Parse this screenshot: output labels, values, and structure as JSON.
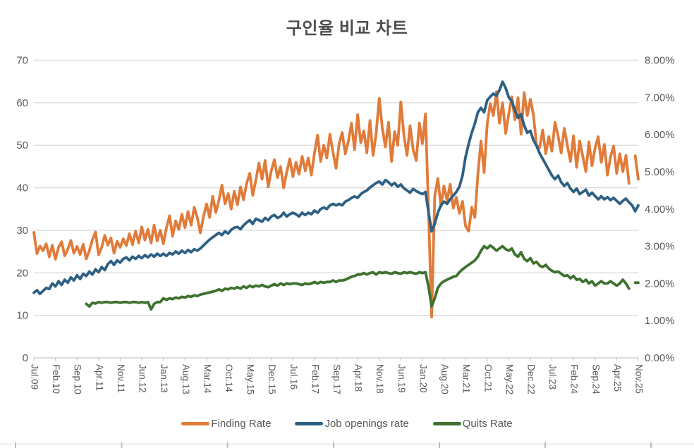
{
  "chart_data": {
    "type": "line",
    "title": "구인율 비교 차트",
    "x_unit": "month",
    "x_start": "Jul.09",
    "x_end": "Nov.25",
    "x_tick_labels": [
      "Jul.09",
      "Feb.10",
      "Sep.10",
      "Apr.11",
      "Nov.11",
      "Jun.12",
      "Jan.13",
      "Aug.13",
      "Mar.14",
      "Oct.14",
      "May.15",
      "Dec.15",
      "Jul.16",
      "Feb.17",
      "Sep.17",
      "Apr.18",
      "Nov.18",
      "Jun.19",
      "Jan.20",
      "Aug.20",
      "Mar.21",
      "Oct.21",
      "May.22",
      "Dec.22",
      "Jul.23",
      "Feb.24",
      "Sep.24",
      "Apr.25",
      "Nov.25"
    ],
    "x_tick_interval_months": 7,
    "left_axis": {
      "min": 0,
      "max": 70,
      "step": 10,
      "tick_labels": [
        "0",
        "10",
        "20",
        "30",
        "40",
        "50",
        "60",
        "70"
      ]
    },
    "right_axis": {
      "min": 0,
      "max": 8,
      "step": 1,
      "tick_labels": [
        "0.00%",
        "1.00%",
        "2.00%",
        "3.00%",
        "4.00%",
        "5.00%",
        "6.00%",
        "7.00%",
        "8.00%"
      ]
    },
    "grid": true,
    "legend_position": "bottom",
    "series": [
      {
        "name": "Finding Rate",
        "axis": "left",
        "color": "#E07B39",
        "values": [
          29.5,
          24.5,
          26.3,
          25.2,
          26.8,
          23.8,
          26.5,
          23.2,
          26.0,
          27.3,
          24.0,
          25.5,
          27.6,
          24.6,
          26.2,
          24.3,
          26.7,
          23.3,
          25.2,
          27.8,
          29.6,
          24.2,
          26.0,
          28.8,
          26.5,
          28.2,
          24.6,
          27.4,
          26.0,
          28.0,
          26.4,
          29.2,
          26.6,
          29.8,
          27.0,
          30.8,
          27.7,
          30.2,
          27.0,
          31.2,
          27.5,
          30.0,
          26.8,
          30.6,
          33.4,
          28.6,
          32.2,
          30.2,
          33.8,
          30.6,
          34.4,
          31.2,
          35.4,
          33.0,
          29.4,
          33.2,
          36.2,
          33.0,
          38.0,
          34.2,
          37.0,
          40.6,
          36.2,
          38.6,
          35.0,
          39.2,
          36.0,
          40.2,
          37.2,
          41.0,
          43.4,
          38.2,
          41.8,
          45.8,
          42.0,
          46.4,
          40.2,
          44.0,
          46.6,
          42.4,
          45.0,
          40.0,
          43.6,
          46.8,
          42.6,
          46.0,
          43.2,
          47.4,
          44.0,
          47.0,
          43.0,
          48.2,
          52.4,
          46.2,
          50.0,
          47.0,
          52.6,
          48.4,
          44.6,
          50.4,
          53.0,
          48.0,
          51.0,
          55.2,
          49.0,
          57.2,
          50.6,
          53.4,
          48.2,
          55.8,
          47.6,
          52.8,
          61.0,
          54.0,
          49.6,
          55.4,
          46.2,
          53.2,
          50.0,
          60.2,
          52.4,
          47.6,
          54.6,
          49.0,
          46.4,
          55.2,
          50.4,
          57.4,
          34.0,
          9.6,
          38.0,
          42.2,
          35.6,
          40.4,
          37.0,
          40.8,
          35.2,
          37.8,
          34.0,
          36.8,
          31.0,
          29.8,
          35.4,
          33.0,
          43.2,
          51.0,
          43.6,
          55.0,
          59.8,
          57.0,
          62.6,
          55.2,
          60.0,
          52.8,
          57.4,
          61.4,
          56.0,
          61.2,
          52.6,
          62.4,
          57.0,
          60.8,
          57.2,
          50.0,
          49.4,
          53.6,
          48.0,
          52.0,
          48.6,
          55.4,
          52.2,
          48.2,
          54.0,
          50.0,
          46.2,
          52.2,
          44.8,
          51.0,
          47.4,
          43.8,
          50.8,
          45.2,
          49.4,
          52.0,
          46.0,
          50.2,
          43.0,
          47.2,
          49.8,
          43.4,
          48.0,
          43.8,
          47.6,
          41.0,
          null,
          47.5,
          42.0
        ]
      },
      {
        "name": "Job openings rate",
        "axis": "right",
        "color": "#2E6083",
        "values": [
          1.75,
          1.82,
          1.72,
          1.8,
          1.88,
          1.85,
          2.0,
          1.92,
          2.06,
          1.96,
          2.1,
          2.02,
          2.16,
          2.08,
          2.22,
          2.12,
          2.26,
          2.2,
          2.32,
          2.24,
          2.38,
          2.3,
          2.44,
          2.36,
          2.52,
          2.6,
          2.5,
          2.62,
          2.56,
          2.66,
          2.7,
          2.62,
          2.72,
          2.66,
          2.74,
          2.68,
          2.76,
          2.7,
          2.78,
          2.72,
          2.8,
          2.74,
          2.8,
          2.74,
          2.82,
          2.78,
          2.86,
          2.8,
          2.88,
          2.82,
          2.9,
          2.84,
          2.92,
          2.88,
          2.94,
          3.02,
          3.1,
          3.18,
          3.24,
          3.3,
          3.36,
          3.3,
          3.4,
          3.34,
          3.44,
          3.5,
          3.52,
          3.46,
          3.56,
          3.64,
          3.7,
          3.6,
          3.74,
          3.7,
          3.66,
          3.76,
          3.7,
          3.8,
          3.84,
          3.76,
          3.8,
          3.9,
          3.8,
          3.86,
          3.9,
          3.86,
          3.8,
          3.9,
          3.84,
          3.9,
          3.86,
          3.96,
          3.9,
          4.0,
          4.04,
          4.0,
          4.1,
          4.14,
          4.1,
          4.14,
          4.1,
          4.2,
          4.24,
          4.3,
          4.34,
          4.3,
          4.4,
          4.46,
          4.5,
          4.58,
          4.64,
          4.7,
          4.74,
          4.66,
          4.78,
          4.72,
          4.64,
          4.7,
          4.6,
          4.66,
          4.56,
          4.5,
          4.44,
          4.54,
          4.48,
          4.44,
          4.4,
          4.46,
          3.9,
          3.4,
          3.6,
          3.9,
          4.1,
          4.2,
          4.14,
          4.26,
          4.36,
          4.46,
          4.6,
          4.9,
          5.4,
          5.75,
          6.05,
          6.3,
          6.6,
          6.72,
          6.6,
          6.92,
          7.02,
          7.1,
          7.05,
          7.2,
          7.42,
          7.25,
          7.0,
          6.9,
          6.65,
          6.45,
          6.55,
          6.25,
          6.05,
          6.1,
          5.85,
          5.7,
          5.5,
          5.35,
          5.2,
          5.05,
          4.9,
          4.8,
          4.9,
          4.72,
          4.62,
          4.7,
          4.55,
          4.46,
          4.55,
          4.4,
          4.46,
          4.52,
          4.36,
          4.44,
          4.35,
          4.26,
          4.34,
          4.26,
          4.32,
          4.24,
          4.3,
          4.22,
          4.14,
          4.22,
          4.28,
          4.18,
          4.1,
          3.94,
          4.1
        ]
      },
      {
        "name": "Quits Rate",
        "axis": "right",
        "color": "#3E722E",
        "values": [
          null,
          null,
          null,
          null,
          null,
          null,
          null,
          null,
          null,
          null,
          null,
          null,
          null,
          null,
          null,
          null,
          null,
          1.45,
          1.38,
          1.48,
          1.46,
          1.5,
          1.48,
          1.5,
          1.5,
          1.48,
          1.5,
          1.5,
          1.48,
          1.5,
          1.5,
          1.48,
          1.5,
          1.5,
          1.48,
          1.5,
          1.48,
          1.5,
          1.3,
          1.45,
          1.5,
          1.5,
          1.6,
          1.56,
          1.6,
          1.58,
          1.62,
          1.6,
          1.64,
          1.62,
          1.66,
          1.64,
          1.68,
          1.66,
          1.7,
          1.72,
          1.74,
          1.76,
          1.78,
          1.8,
          1.84,
          1.8,
          1.86,
          1.84,
          1.88,
          1.86,
          1.9,
          1.86,
          1.92,
          1.88,
          1.94,
          1.9,
          1.94,
          1.92,
          1.96,
          1.92,
          1.9,
          1.94,
          1.98,
          1.94,
          2.0,
          1.96,
          2.0,
          1.98,
          2.0,
          2.0,
          1.98,
          1.96,
          2.0,
          1.98,
          2.0,
          2.04,
          2.0,
          2.04,
          2.02,
          2.04,
          2.04,
          2.08,
          2.04,
          2.08,
          2.08,
          2.1,
          2.14,
          2.18,
          2.2,
          2.24,
          2.24,
          2.28,
          2.24,
          2.28,
          2.3,
          2.24,
          2.3,
          2.28,
          2.3,
          2.28,
          2.26,
          2.3,
          2.28,
          2.26,
          2.3,
          2.28,
          2.3,
          2.28,
          2.26,
          2.3,
          2.28,
          2.3,
          1.9,
          1.38,
          1.6,
          1.88,
          2.0,
          2.06,
          2.1,
          2.14,
          2.18,
          2.2,
          2.3,
          2.38,
          2.44,
          2.5,
          2.56,
          2.62,
          2.72,
          2.88,
          3.0,
          2.94,
          3.02,
          2.96,
          2.88,
          2.94,
          3.0,
          2.92,
          2.88,
          2.94,
          2.78,
          2.72,
          2.84,
          2.66,
          2.6,
          2.68,
          2.54,
          2.58,
          2.48,
          2.44,
          2.5,
          2.4,
          2.34,
          2.3,
          2.32,
          2.26,
          2.2,
          2.22,
          2.14,
          2.2,
          2.1,
          2.12,
          2.04,
          2.1,
          2.0,
          2.06,
          1.94,
          2.0,
          2.06,
          2.0,
          2.0,
          2.06,
          2.0,
          1.94,
          2.0,
          2.1,
          2.0,
          1.86,
          null,
          2.02,
          2.02
        ]
      }
    ]
  },
  "legend": {
    "items": [
      {
        "label": "Finding Rate",
        "color": "#E07B39"
      },
      {
        "label": "Job openings rate",
        "color": "#2E6083"
      },
      {
        "label": "Quits Rate",
        "color": "#3E722E"
      }
    ]
  },
  "colors": {
    "background": "#FFFFFF",
    "gridline": "#D9D9D9",
    "axis_line": "#C6C6C6",
    "tick_text": "#595959",
    "title_text": "#4D4D4D",
    "sheet_edge": "#BDBDBD"
  }
}
